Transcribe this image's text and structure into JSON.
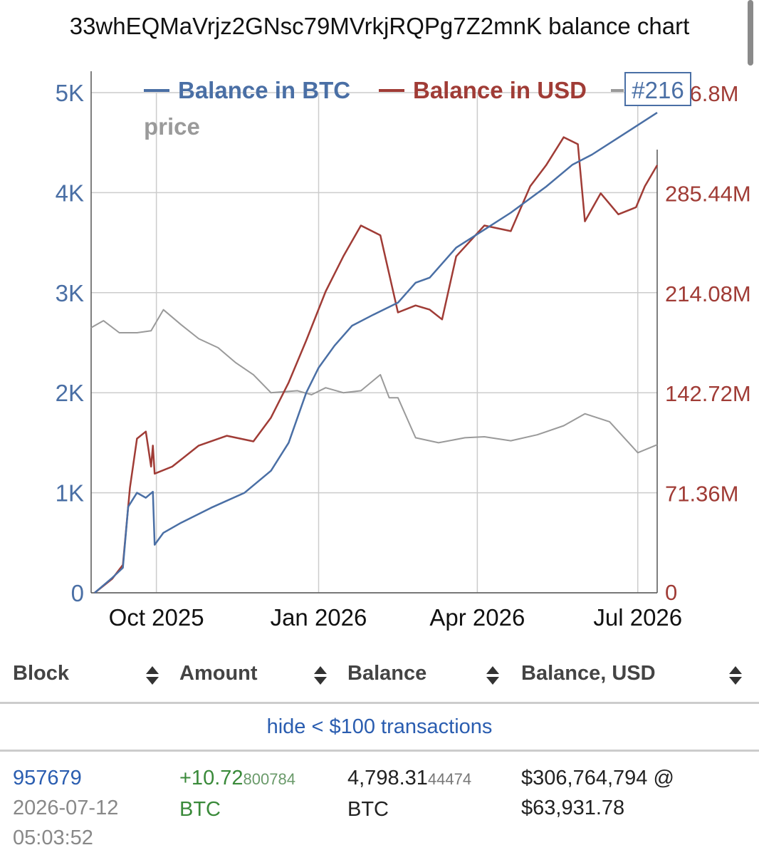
{
  "title": "33whEQMaVrjz2GNsc79MVrkjRQPg7Z2mnK balance chart",
  "chart_data": {
    "type": "line",
    "x_ticks": [
      "Oct 2025",
      "Jan 2026",
      "Apr 2026",
      "Jul 2026"
    ],
    "y_left_ticks": [
      "0",
      "1K",
      "2K",
      "3K",
      "4K",
      "5K"
    ],
    "y_right_ticks": [
      "0",
      "71.36M",
      "142.72M",
      "214.08M",
      "285.44M",
      "356.8M"
    ],
    "ylim_left": [
      0,
      5000
    ],
    "ylim_right": [
      0,
      356800000
    ],
    "legend": {
      "btc": "Balance in BTC",
      "usd": "Balance in USD",
      "price": "price",
      "rank": "#216",
      "position": "top"
    },
    "colors": {
      "btc": "#4a6fa5",
      "usd": "#a03c36",
      "price": "#9a9a9a",
      "grid": "#cccccc"
    },
    "x_range": [
      "2025-08-25",
      "2026-07-12"
    ],
    "series": [
      {
        "name": "Balance in BTC",
        "axis": "left",
        "x": [
          "2025-08-27",
          "2025-09-06",
          "2025-09-12",
          "2025-09-15",
          "2025-09-20",
          "2025-09-25",
          "2025-09-29",
          "2025-09-30",
          "2025-10-05",
          "2025-10-15",
          "2025-11-01",
          "2025-11-20",
          "2025-12-05",
          "2025-12-15",
          "2025-12-25",
          "2026-01-01",
          "2026-01-10",
          "2026-01-20",
          "2026-02-01",
          "2026-02-15",
          "2026-02-25",
          "2026-03-05",
          "2026-03-20",
          "2026-04-05",
          "2026-04-20",
          "2026-05-10",
          "2026-05-25",
          "2026-06-05",
          "2026-06-20",
          "2026-07-12"
        ],
        "values": [
          0,
          150,
          250,
          860,
          1000,
          950,
          1010,
          480,
          600,
          700,
          850,
          1000,
          1220,
          1500,
          2000,
          2250,
          2470,
          2670,
          2780,
          2900,
          3100,
          3150,
          3450,
          3630,
          3800,
          4060,
          4280,
          4380,
          4550,
          4800
        ]
      },
      {
        "name": "Balance in USD",
        "axis": "right",
        "x": [
          "2025-08-27",
          "2025-09-06",
          "2025-09-12",
          "2025-09-16",
          "2025-09-20",
          "2025-09-25",
          "2025-09-28",
          "2025-09-29",
          "2025-09-30",
          "2025-10-10",
          "2025-10-25",
          "2025-11-10",
          "2025-11-25",
          "2025-12-05",
          "2025-12-15",
          "2025-12-25",
          "2026-01-05",
          "2026-01-15",
          "2026-01-25",
          "2026-02-05",
          "2026-02-15",
          "2026-02-25",
          "2026-03-05",
          "2026-03-12",
          "2026-03-20",
          "2026-04-05",
          "2026-04-20",
          "2026-05-01",
          "2026-05-10",
          "2026-05-20",
          "2026-05-28",
          "2026-06-01",
          "2026-06-10",
          "2026-06-20",
          "2026-06-30",
          "2026-07-05",
          "2026-07-12"
        ],
        "values": [
          0,
          10000000,
          20000000,
          75000000,
          110000000,
          115000000,
          90000000,
          105000000,
          85000000,
          90000000,
          105000000,
          112000000,
          108000000,
          125000000,
          150000000,
          180000000,
          215000000,
          240000000,
          262000000,
          255000000,
          200000000,
          205000000,
          202000000,
          195000000,
          240000000,
          262000000,
          258000000,
          290000000,
          305000000,
          325000000,
          320000000,
          265000000,
          285000000,
          270000000,
          275000000,
          290000000,
          305000000
        ]
      },
      {
        "name": "price",
        "axis": "left",
        "x": [
          "2025-08-25",
          "2025-09-01",
          "2025-09-10",
          "2025-09-20",
          "2025-09-28",
          "2025-10-05",
          "2025-10-15",
          "2025-10-25",
          "2025-11-05",
          "2025-11-15",
          "2025-11-25",
          "2025-12-05",
          "2025-12-20",
          "2025-12-28",
          "2026-01-05",
          "2026-01-15",
          "2026-01-25",
          "2026-02-05",
          "2026-02-10",
          "2026-02-15",
          "2026-02-25",
          "2026-03-10",
          "2026-03-25",
          "2026-04-05",
          "2026-04-20",
          "2026-05-05",
          "2026-05-20",
          "2026-06-01",
          "2026-06-15",
          "2026-07-01",
          "2026-07-12"
        ],
        "values": [
          2650,
          2720,
          2600,
          2600,
          2620,
          2830,
          2680,
          2540,
          2450,
          2300,
          2180,
          2000,
          2020,
          1980,
          2050,
          2000,
          2020,
          2180,
          1950,
          1950,
          1550,
          1500,
          1550,
          1560,
          1520,
          1580,
          1670,
          1790,
          1710,
          1400,
          1480
        ]
      }
    ]
  },
  "table": {
    "headers": [
      "Block",
      "Amount",
      "Balance",
      "Balance, USD"
    ],
    "hide_link": "hide < $100 transactions",
    "row": {
      "block": "957679",
      "date": "2026-07-12",
      "time": "05:03:52",
      "amount_main": "+10.72",
      "amount_small": "800784",
      "amount_unit": "BTC",
      "balance_main": "4,798.31",
      "balance_small": "44474",
      "balance_unit": "BTC",
      "usd_line1": "$306,764,794 @",
      "usd_line2": "$63,931.78"
    }
  }
}
